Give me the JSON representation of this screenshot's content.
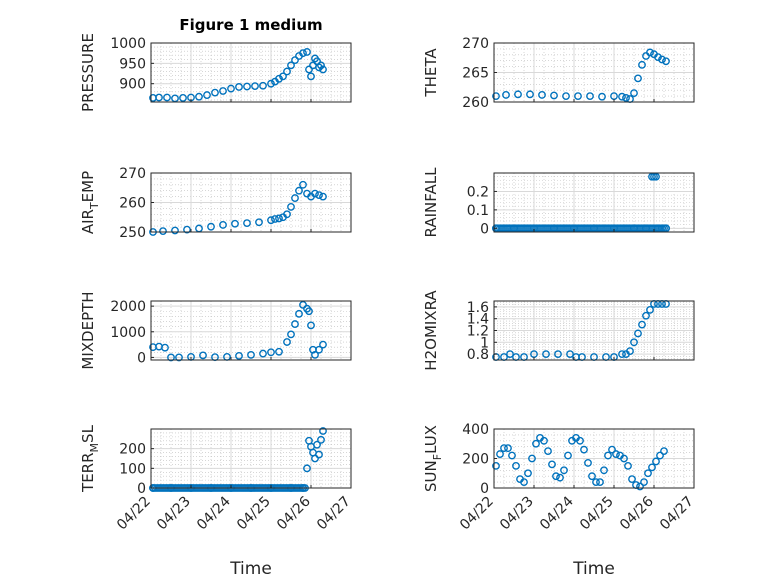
{
  "figure_title": "Figure 1 medium",
  "colors": {
    "marker": "#0072BD",
    "grid_major": "#d9d9d9",
    "grid_minor": "#bdbdbd",
    "axis": "#262626"
  },
  "time_ticks": [
    "04/22",
    "04/23",
    "04/24",
    "04/25",
    "04/26",
    "04/27"
  ],
  "chart_data": [
    {
      "type": "scatter",
      "ylabel": "PRESSURE",
      "title": "Figure 1 medium",
      "ylim": [
        855,
        1000
      ],
      "yticks": [
        900,
        950,
        1000
      ],
      "xlim": [
        0,
        5
      ],
      "grid": "major+minor",
      "x": [
        0.05,
        0.2,
        0.4,
        0.6,
        0.8,
        1.0,
        1.2,
        1.4,
        1.6,
        1.8,
        2.0,
        2.2,
        2.4,
        2.6,
        2.8,
        3.0,
        3.1,
        3.2,
        3.3,
        3.4,
        3.5,
        3.6,
        3.7,
        3.8,
        3.9,
        3.95,
        4.0,
        4.05,
        4.1,
        4.15,
        4.2,
        4.25,
        4.3
      ],
      "y": [
        865,
        866,
        866,
        864,
        865,
        866,
        868,
        872,
        878,
        882,
        888,
        892,
        893,
        894,
        895,
        900,
        905,
        912,
        918,
        930,
        945,
        958,
        968,
        975,
        978,
        935,
        918,
        945,
        962,
        955,
        940,
        945,
        935
      ]
    },
    {
      "type": "scatter",
      "ylabel": "THETA",
      "ylim": [
        260,
        270
      ],
      "yticks": [
        260,
        265,
        270
      ],
      "xlim": [
        0,
        5
      ],
      "grid": "major+minor",
      "x": [
        0.05,
        0.3,
        0.6,
        0.9,
        1.2,
        1.5,
        1.8,
        2.1,
        2.4,
        2.7,
        3.0,
        3.2,
        3.3,
        3.4,
        3.5,
        3.6,
        3.7,
        3.8,
        3.9,
        4.0,
        4.1,
        4.2,
        4.3
      ],
      "y": [
        261,
        261.2,
        261.3,
        261.3,
        261.2,
        261.1,
        261,
        261,
        261,
        260.9,
        261,
        260.9,
        260.7,
        260.5,
        261.5,
        264,
        266.3,
        267.8,
        268.4,
        268.1,
        267.6,
        267.2,
        266.9
      ]
    },
    {
      "type": "scatter",
      "ylabel": "AIR_TEMP",
      "ylim": [
        250,
        270
      ],
      "yticks": [
        250,
        260,
        270
      ],
      "xlim": [
        0,
        5
      ],
      "grid": "major+minor",
      "x": [
        0.05,
        0.3,
        0.6,
        0.9,
        1.2,
        1.5,
        1.8,
        2.1,
        2.4,
        2.7,
        3.0,
        3.1,
        3.2,
        3.3,
        3.4,
        3.5,
        3.6,
        3.7,
        3.8,
        3.9,
        4.0,
        4.1,
        4.2,
        4.3
      ],
      "y": [
        250,
        250.3,
        250.5,
        250.8,
        251.2,
        251.8,
        252.4,
        252.8,
        253,
        253.3,
        254,
        254.4,
        254.6,
        255,
        256,
        258.5,
        261.5,
        264,
        266,
        263,
        262,
        263,
        262.5,
        262
      ]
    },
    {
      "type": "scatter",
      "ylabel": "RAINFALL",
      "ylim": [
        -0.02,
        0.3
      ],
      "yticks": [
        0,
        0.1,
        0.2
      ],
      "xlim": [
        0,
        5
      ],
      "grid": "major+minor",
      "x": [
        0.05,
        0.5,
        1.0,
        1.5,
        2.0,
        2.5,
        3.0,
        3.5,
        3.8,
        3.95,
        4.0,
        4.05,
        4.1,
        4.2,
        4.3
      ],
      "y": [
        0,
        0,
        0,
        0,
        0,
        0,
        0,
        0,
        0,
        0.28,
        0.28,
        0.28,
        0,
        0,
        0
      ]
    },
    {
      "type": "scatter",
      "ylabel": "MIXDEPTH",
      "ylim": [
        -100,
        2200
      ],
      "yticks": [
        0,
        1000,
        2000
      ],
      "xlim": [
        0,
        5
      ],
      "grid": "major+minor",
      "x": [
        0.05,
        0.2,
        0.35,
        0.5,
        0.7,
        1.0,
        1.3,
        1.6,
        1.9,
        2.2,
        2.5,
        2.8,
        3.0,
        3.2,
        3.4,
        3.5,
        3.6,
        3.7,
        3.8,
        3.9,
        3.95,
        4.0,
        4.05,
        4.1,
        4.2,
        4.3
      ],
      "y": [
        400,
        420,
        380,
        0,
        0,
        20,
        80,
        10,
        20,
        60,
        100,
        150,
        200,
        220,
        600,
        900,
        1300,
        1700,
        2050,
        1900,
        1800,
        1250,
        300,
        100,
        300,
        500
      ]
    },
    {
      "type": "scatter",
      "ylabel": "H2OMIXRA",
      "ylim": [
        0.7,
        1.7
      ],
      "yticks": [
        0.8,
        1,
        1.2,
        1.4,
        1.6
      ],
      "xlim": [
        0,
        5
      ],
      "grid": "major+minor",
      "x": [
        0.05,
        0.25,
        0.4,
        0.55,
        0.75,
        1.0,
        1.3,
        1.6,
        1.9,
        2.05,
        2.2,
        2.5,
        2.8,
        3.0,
        3.2,
        3.3,
        3.4,
        3.5,
        3.6,
        3.7,
        3.8,
        3.9,
        4.0,
        4.1,
        4.2,
        4.3
      ],
      "y": [
        0.75,
        0.75,
        0.8,
        0.75,
        0.75,
        0.8,
        0.8,
        0.8,
        0.8,
        0.75,
        0.75,
        0.75,
        0.75,
        0.75,
        0.8,
        0.8,
        0.85,
        1.0,
        1.15,
        1.3,
        1.45,
        1.55,
        1.65,
        1.65,
        1.65,
        1.65
      ]
    },
    {
      "type": "scatter",
      "ylabel": "TERR_MSL",
      "ylim": [
        0,
        300
      ],
      "yticks": [
        0,
        100,
        200
      ],
      "xlim": [
        0,
        5
      ],
      "grid": "major+minor",
      "x": [
        0.05,
        0.5,
        1.0,
        1.5,
        2.0,
        2.5,
        3.0,
        3.5,
        3.8,
        3.9,
        3.95,
        4.0,
        4.05,
        4.1,
        4.15,
        4.2,
        4.25,
        4.3
      ],
      "y": [
        0,
        0,
        0,
        0,
        0,
        0,
        0,
        0,
        0,
        100,
        240,
        210,
        180,
        150,
        220,
        170,
        245,
        290
      ]
    },
    {
      "type": "scatter",
      "ylabel": "SUN_FLUX",
      "ylim": [
        0,
        400
      ],
      "yticks": [
        0,
        200,
        400
      ],
      "xlim": [
        0,
        5
      ],
      "grid": "major+minor",
      "x": [
        0.05,
        0.15,
        0.25,
        0.35,
        0.45,
        0.55,
        0.65,
        0.75,
        0.85,
        0.95,
        1.05,
        1.15,
        1.25,
        1.35,
        1.45,
        1.55,
        1.65,
        1.75,
        1.85,
        1.95,
        2.05,
        2.15,
        2.25,
        2.35,
        2.45,
        2.55,
        2.65,
        2.75,
        2.85,
        2.95,
        3.05,
        3.15,
        3.25,
        3.35,
        3.45,
        3.55,
        3.65,
        3.75,
        3.85,
        3.95,
        4.05,
        4.15,
        4.25
      ],
      "y": [
        150,
        230,
        270,
        270,
        220,
        150,
        60,
        40,
        100,
        200,
        300,
        340,
        320,
        250,
        160,
        80,
        70,
        120,
        220,
        320,
        340,
        320,
        260,
        170,
        80,
        40,
        40,
        120,
        220,
        260,
        230,
        220,
        200,
        150,
        60,
        20,
        10,
        40,
        100,
        140,
        180,
        220,
        250
      ]
    }
  ]
}
